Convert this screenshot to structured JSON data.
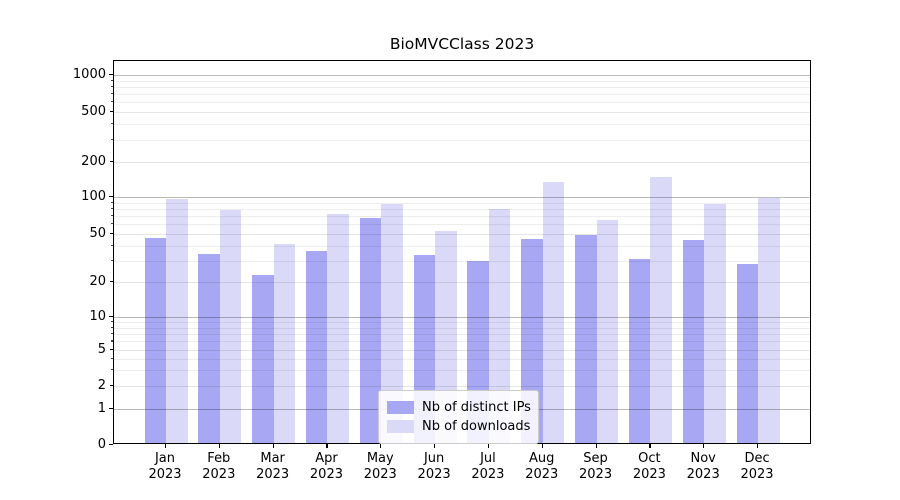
{
  "title": "BioMVCClass 2023",
  "chart_data": {
    "type": "bar",
    "title": "BioMVCClass 2023",
    "months": [
      "Jan",
      "Feb",
      "Mar",
      "Apr",
      "May",
      "Jun",
      "Jul",
      "Aug",
      "Sep",
      "Oct",
      "Nov",
      "Dec"
    ],
    "year": "2023",
    "categories": [
      "Jan 2023",
      "Feb 2023",
      "Mar 2023",
      "Apr 2023",
      "May 2023",
      "Jun 2023",
      "Jul 2023",
      "Aug 2023",
      "Sep 2023",
      "Oct 2023",
      "Nov 2023",
      "Dec 2023"
    ],
    "series": [
      {
        "name": "Nb of distinct IPs",
        "color": "#a7a7f3",
        "values": [
          45,
          33,
          22,
          35,
          65,
          32,
          29,
          44,
          47,
          30,
          43,
          27
        ]
      },
      {
        "name": "Nb of downloads",
        "color": "#dadaf8",
        "values": [
          92,
          75,
          40,
          70,
          84,
          51,
          77,
          130,
          63,
          143,
          85,
          95
        ]
      }
    ],
    "yscale": "symlog",
    "y_ticks": [
      0,
      1,
      2,
      5,
      10,
      20,
      50,
      100,
      200,
      500,
      1000
    ],
    "ylim": [
      0,
      1400
    ],
    "xlabel": "",
    "ylabel": "",
    "grid": true,
    "legend_position": "lower center"
  },
  "colors": {
    "background": "#ffffff",
    "spine": "#000000",
    "grid_major": "#b9b9b9",
    "grid_minor": "#ebebeb",
    "legend_border": "#cccccc"
  }
}
